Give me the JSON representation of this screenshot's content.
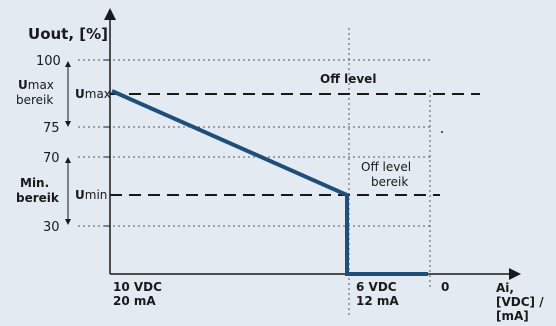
{
  "diagram": {
    "y_axis_label": {
      "bold": "U",
      "rest": "out, [%]"
    },
    "y_ticks": [
      "100",
      "75",
      "70",
      "30"
    ],
    "umax_bereik": {
      "letter": "U",
      "rest": "max",
      "second": "bereik"
    },
    "min_bereik": {
      "first": "Min.",
      "second": "bereik"
    },
    "umax_label": {
      "bold": "U",
      "rest": "max"
    },
    "umin_label": {
      "bold": "U",
      "rest": "min"
    },
    "off_level": "Off level",
    "off_level_bereik": {
      "first": "Off level",
      "second": "bereik"
    },
    "x_left": {
      "line1": "10 VDC",
      "line2": "20 mA"
    },
    "x_mid": {
      "line1": "6 VDC",
      "line2": "12 mA"
    },
    "x_zero": "0",
    "x_axis_label": {
      "line1": "Ai,",
      "line2": "[VDC] /",
      "line3": "[mA]"
    },
    "colors": {
      "background": "#e3eaf2",
      "curve": "#1f4e79",
      "axis": "#1a1a1a"
    }
  }
}
